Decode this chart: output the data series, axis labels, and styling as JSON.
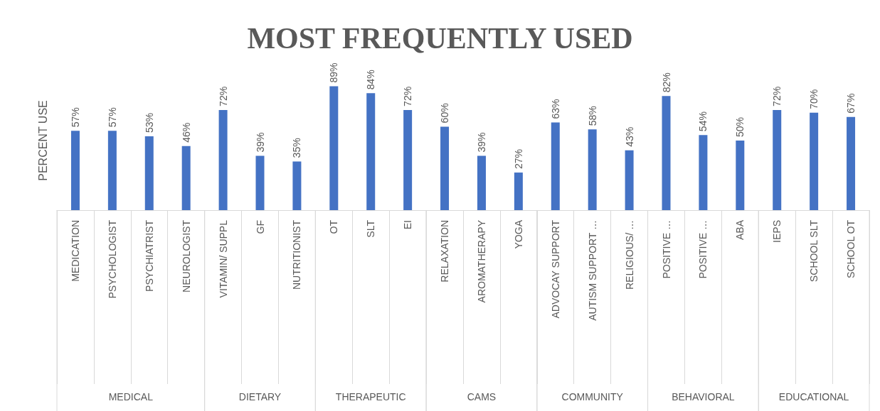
{
  "chart_data": {
    "type": "bar",
    "title": "MOST FREQUENTLY USED",
    "ylabel": "PERCENT USE",
    "color": "#4472c4",
    "categories": [
      "MEDICATION",
      "PSYCHOLOGIST",
      "PSYCHIATRIST",
      "NEUROLOGIST",
      "VITAMIN/ SUPPL",
      "GF",
      "NUTRITIONIST",
      "OT",
      "SLT",
      "EI",
      "RELAXATION",
      "AROMATHERAPY",
      "YOGA",
      "ADVOCAY SUPPORT",
      "AUTISM SUPPORT …",
      "RELIGIOUS/ …",
      "POSITIVE …",
      "POSITIVE …",
      "ABA",
      "IEPS",
      "SCHOOL SLT",
      "SCHOOL OT"
    ],
    "values": [
      57,
      57,
      53,
      46,
      72,
      39,
      35,
      89,
      84,
      72,
      60,
      39,
      27,
      63,
      58,
      43,
      82,
      54,
      50,
      72,
      70,
      67
    ],
    "value_labels": [
      "57%",
      "57%",
      "53%",
      "46%",
      "72%",
      "39%",
      "35%",
      "89%",
      "84%",
      "72%",
      "60%",
      "39%",
      "27%",
      "63%",
      "58%",
      "43%",
      "82%",
      "54%",
      "50%",
      "72%",
      "70%",
      "67%"
    ],
    "annotations": [
      "MEDICAL",
      "DIETARY",
      "THERAPEUTIC",
      "CAMS",
      "COMMUNITY",
      "BEHAVIORAL",
      "EDUCATIONAL"
    ]
  }
}
